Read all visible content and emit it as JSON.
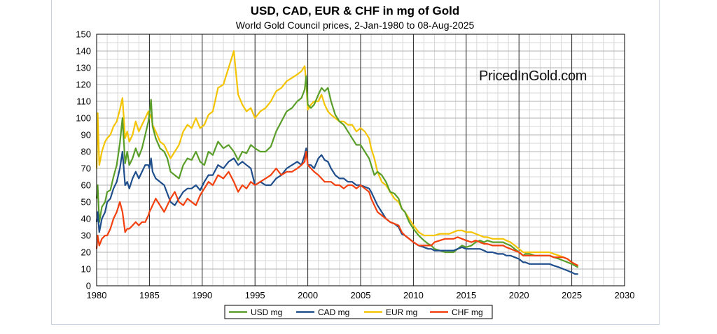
{
  "chart_data": {
    "type": "line",
    "title": "USD, CAD, EUR & CHF in mg of Gold",
    "subtitle": "World Gold Council prices, 2-Jan-1980 to 08-Aug-2025",
    "watermark": "PricedInGold.com",
    "xlabel": "",
    "ylabel": "",
    "xlim": [
      1980,
      2030
    ],
    "ylim": [
      0,
      150
    ],
    "x_ticks": [
      1980,
      1985,
      1990,
      1995,
      2000,
      2005,
      2010,
      2015,
      2020,
      2025,
      2030
    ],
    "y_ticks": [
      0,
      10,
      20,
      30,
      40,
      50,
      60,
      70,
      80,
      90,
      100,
      110,
      120,
      130,
      140,
      150
    ],
    "grid": true,
    "legend_position": "bottom",
    "series": [
      {
        "name": "USD mg",
        "color": "#5a9e2a",
        "x": [
          1980.0,
          1980.1,
          1980.25,
          1980.5,
          1980.8,
          1981.0,
          1981.3,
          1981.6,
          1981.9,
          1982.2,
          1982.45,
          1982.7,
          1982.9,
          1983.1,
          1983.4,
          1983.7,
          1984.0,
          1984.3,
          1984.6,
          1984.9,
          1985.0,
          1985.15,
          1985.3,
          1985.6,
          1986.0,
          1986.4,
          1986.7,
          1987.0,
          1987.4,
          1987.8,
          1988.2,
          1988.6,
          1989.0,
          1989.4,
          1989.8,
          1990.2,
          1990.6,
          1991.0,
          1991.5,
          1992.0,
          1992.5,
          1993.0,
          1993.4,
          1993.8,
          1994.2,
          1994.6,
          1995.0,
          1995.5,
          1996.0,
          1996.5,
          1997.0,
          1997.5,
          1998.0,
          1998.5,
          1999.0,
          1999.4,
          1999.7,
          1999.85,
          2000.0,
          2000.3,
          2000.6,
          2001.0,
          2001.3,
          2001.6,
          2001.9,
          2002.2,
          2002.6,
          2003.0,
          2003.4,
          2003.8,
          2004.2,
          2004.6,
          2005.0,
          2005.4,
          2005.8,
          2006.0,
          2006.3,
          2006.6,
          2007.0,
          2007.4,
          2007.8,
          2008.2,
          2008.6,
          2008.9,
          2009.2,
          2009.6,
          2010.0,
          2010.5,
          2011.0,
          2011.4,
          2011.7,
          2012.0,
          2012.5,
          2013.0,
          2013.4,
          2013.8,
          2014.2,
          2014.6,
          2015.0,
          2015.5,
          2015.9,
          2016.3,
          2016.7,
          2017.0,
          2017.5,
          2018.0,
          2018.5,
          2018.8,
          2019.2,
          2019.6,
          2020.0,
          2020.4,
          2020.6,
          2021.0,
          2021.5,
          2022.0,
          2022.5,
          2022.9,
          2023.3,
          2023.8,
          2024.2,
          2024.6,
          2025.0,
          2025.3,
          2025.6
        ],
        "values": [
          52,
          60,
          38,
          47,
          50,
          56,
          57,
          65,
          72,
          85,
          100,
          73,
          80,
          72,
          76,
          82,
          77,
          82,
          90,
          98,
          102,
          111,
          95,
          88,
          82,
          80,
          76,
          68,
          66,
          64,
          72,
          76,
          75,
          80,
          74,
          72,
          80,
          78,
          86,
          82,
          84,
          80,
          75,
          80,
          79,
          84,
          82,
          80,
          80,
          83,
          92,
          98,
          104,
          106,
          110,
          112,
          117,
          125,
          108,
          106,
          108,
          114,
          118,
          116,
          118,
          110,
          102,
          98,
          96,
          92,
          88,
          84,
          84,
          80,
          76,
          72,
          66,
          68,
          66,
          62,
          56,
          55,
          52,
          46,
          44,
          38,
          34,
          30,
          27,
          25,
          24,
          22,
          21,
          20,
          20,
          20,
          22,
          24,
          23,
          24,
          26,
          27,
          26,
          27,
          26,
          26,
          26,
          25,
          24,
          22,
          20,
          18,
          19,
          19,
          18,
          18,
          18,
          18,
          17,
          16,
          15,
          14,
          13,
          12,
          11
        ]
      },
      {
        "name": "CAD mg",
        "color": "#1f4e8c",
        "x": [
          1980.0,
          1980.1,
          1980.25,
          1980.5,
          1980.8,
          1981.0,
          1981.3,
          1981.6,
          1981.9,
          1982.2,
          1982.45,
          1982.7,
          1982.9,
          1983.1,
          1983.4,
          1983.7,
          1984.0,
          1984.3,
          1984.6,
          1984.9,
          1985.0,
          1985.15,
          1985.3,
          1985.6,
          1986.0,
          1986.4,
          1986.7,
          1987.0,
          1987.4,
          1987.8,
          1988.2,
          1988.6,
          1989.0,
          1989.4,
          1989.8,
          1990.2,
          1990.6,
          1991.0,
          1991.5,
          1992.0,
          1992.5,
          1993.0,
          1993.4,
          1993.8,
          1994.2,
          1994.6,
          1995.0,
          1995.5,
          1996.0,
          1996.5,
          1997.0,
          1997.5,
          1998.0,
          1998.5,
          1999.0,
          1999.4,
          1999.7,
          1999.85,
          2000.0,
          2000.3,
          2000.6,
          2001.0,
          2001.3,
          2001.6,
          2001.9,
          2002.2,
          2002.6,
          2003.0,
          2003.4,
          2003.8,
          2004.2,
          2004.6,
          2005.0,
          2005.4,
          2005.8,
          2006.0,
          2006.3,
          2006.6,
          2007.0,
          2007.4,
          2007.8,
          2008.2,
          2008.6,
          2008.9,
          2009.2,
          2009.6,
          2010.0,
          2010.5,
          2011.0,
          2011.4,
          2011.7,
          2012.0,
          2012.5,
          2013.0,
          2013.4,
          2013.8,
          2014.2,
          2014.6,
          2015.0,
          2015.5,
          2015.9,
          2016.3,
          2016.7,
          2017.0,
          2017.5,
          2018.0,
          2018.5,
          2018.8,
          2019.2,
          2019.6,
          2020.0,
          2020.4,
          2020.6,
          2021.0,
          2021.5,
          2022.0,
          2022.5,
          2022.9,
          2023.3,
          2023.8,
          2024.2,
          2024.6,
          2025.0,
          2025.3,
          2025.6
        ],
        "values": [
          38,
          44,
          32,
          40,
          44,
          50,
          52,
          58,
          62,
          70,
          80,
          60,
          62,
          58,
          64,
          68,
          64,
          68,
          72,
          72,
          70,
          76,
          68,
          64,
          62,
          60,
          55,
          50,
          48,
          52,
          56,
          58,
          58,
          60,
          57,
          62,
          66,
          66,
          72,
          70,
          74,
          76,
          72,
          74,
          72,
          70,
          60,
          62,
          60,
          60,
          64,
          66,
          70,
          72,
          74,
          72,
          78,
          82,
          72,
          72,
          70,
          76,
          78,
          75,
          74,
          70,
          66,
          64,
          64,
          62,
          62,
          60,
          60,
          59,
          58,
          56,
          52,
          48,
          44,
          40,
          38,
          37,
          35,
          31,
          30,
          28,
          26,
          24,
          23,
          22,
          22,
          21,
          21,
          21,
          21,
          21,
          22,
          23,
          22,
          22,
          22,
          22,
          21,
          20,
          20,
          19,
          19,
          18,
          18,
          17,
          16,
          14,
          14,
          13,
          13,
          13,
          13,
          13,
          12,
          11,
          10,
          9,
          8,
          7,
          7
        ]
      },
      {
        "name": "EUR mg",
        "color": "#f5c400",
        "x": [
          1980.0,
          1980.1,
          1980.25,
          1980.5,
          1980.8,
          1981.0,
          1981.3,
          1981.6,
          1981.9,
          1982.2,
          1982.45,
          1982.7,
          1982.9,
          1983.1,
          1983.4,
          1983.7,
          1984.0,
          1984.3,
          1984.6,
          1984.9,
          1985.0,
          1985.15,
          1985.3,
          1985.6,
          1986.0,
          1986.4,
          1986.7,
          1987.0,
          1987.4,
          1987.8,
          1988.2,
          1988.6,
          1989.0,
          1989.4,
          1989.8,
          1990.2,
          1990.6,
          1991.0,
          1991.5,
          1992.0,
          1992.5,
          1993.0,
          1993.4,
          1993.8,
          1994.2,
          1994.6,
          1995.0,
          1995.5,
          1996.0,
          1996.5,
          1997.0,
          1997.5,
          1998.0,
          1998.5,
          1999.0,
          1999.4,
          1999.7,
          1999.85,
          2000.0,
          2000.3,
          2000.6,
          2001.0,
          2001.3,
          2001.6,
          2001.9,
          2002.2,
          2002.6,
          2003.0,
          2003.4,
          2003.8,
          2004.2,
          2004.6,
          2005.0,
          2005.4,
          2005.8,
          2006.0,
          2006.3,
          2006.6,
          2007.0,
          2007.4,
          2007.8,
          2008.2,
          2008.6,
          2008.9,
          2009.2,
          2009.6,
          2010.0,
          2010.5,
          2011.0,
          2011.4,
          2011.7,
          2012.0,
          2012.5,
          2013.0,
          2013.4,
          2013.8,
          2014.2,
          2014.6,
          2015.0,
          2015.5,
          2015.9,
          2016.3,
          2016.7,
          2017.0,
          2017.5,
          2018.0,
          2018.5,
          2018.8,
          2019.2,
          2019.6,
          2020.0,
          2020.4,
          2020.6,
          2021.0,
          2021.5,
          2022.0,
          2022.5,
          2022.9,
          2023.3,
          2023.8,
          2024.2,
          2024.6,
          2025.0,
          2025.3,
          2025.6
        ],
        "values": [
          70,
          103,
          72,
          80,
          86,
          88,
          90,
          95,
          98,
          105,
          112,
          88,
          92,
          86,
          90,
          98,
          92,
          96,
          100,
          104,
          100,
          102,
          96,
          92,
          86,
          84,
          80,
          76,
          80,
          84,
          92,
          96,
          94,
          100,
          94,
          96,
          102,
          104,
          118,
          120,
          130,
          140,
          114,
          108,
          104,
          106,
          100,
          104,
          106,
          110,
          116,
          118,
          122,
          124,
          126,
          128,
          131,
          122,
          105,
          108,
          110,
          110,
          114,
          108,
          104,
          102,
          100,
          98,
          98,
          96,
          96,
          92,
          94,
          92,
          88,
          82,
          76,
          68,
          62,
          60,
          56,
          52,
          50,
          46,
          44,
          40,
          36,
          32,
          30,
          30,
          30,
          30,
          31,
          31,
          31,
          32,
          33,
          33,
          32,
          32,
          31,
          30,
          29,
          29,
          28,
          28,
          28,
          27,
          26,
          24,
          22,
          20,
          20,
          20,
          20,
          20,
          20,
          20,
          19,
          18,
          17,
          16,
          14,
          13,
          12
        ]
      },
      {
        "name": "CHF mg",
        "color": "#f2400f",
        "x": [
          1980.0,
          1980.1,
          1980.25,
          1980.5,
          1980.8,
          1981.0,
          1981.3,
          1981.6,
          1981.9,
          1982.2,
          1982.45,
          1982.7,
          1982.9,
          1983.1,
          1983.4,
          1983.7,
          1984.0,
          1984.3,
          1984.6,
          1984.9,
          1985.0,
          1985.15,
          1985.3,
          1985.6,
          1986.0,
          1986.4,
          1986.7,
          1987.0,
          1987.4,
          1987.8,
          1988.2,
          1988.6,
          1989.0,
          1989.4,
          1989.8,
          1990.2,
          1990.6,
          1991.0,
          1991.5,
          1992.0,
          1992.5,
          1993.0,
          1993.4,
          1993.8,
          1994.2,
          1994.6,
          1995.0,
          1995.5,
          1996.0,
          1996.5,
          1997.0,
          1997.5,
          1998.0,
          1998.5,
          1999.0,
          1999.4,
          1999.7,
          1999.85,
          2000.0,
          2000.3,
          2000.6,
          2001.0,
          2001.3,
          2001.6,
          2001.9,
          2002.2,
          2002.6,
          2003.0,
          2003.4,
          2003.8,
          2004.2,
          2004.6,
          2005.0,
          2005.4,
          2005.8,
          2006.0,
          2006.3,
          2006.6,
          2007.0,
          2007.4,
          2007.8,
          2008.2,
          2008.6,
          2008.9,
          2009.2,
          2009.6,
          2010.0,
          2010.5,
          2011.0,
          2011.4,
          2011.7,
          2012.0,
          2012.5,
          2013.0,
          2013.4,
          2013.8,
          2014.2,
          2014.6,
          2015.0,
          2015.5,
          2015.9,
          2016.3,
          2016.7,
          2017.0,
          2017.5,
          2018.0,
          2018.5,
          2018.8,
          2019.2,
          2019.6,
          2020.0,
          2020.4,
          2020.6,
          2021.0,
          2021.5,
          2022.0,
          2022.5,
          2022.9,
          2023.3,
          2023.8,
          2024.2,
          2024.6,
          2025.0,
          2025.3,
          2025.6
        ],
        "values": [
          22,
          30,
          24,
          28,
          30,
          30,
          34,
          40,
          44,
          50,
          44,
          32,
          34,
          34,
          36,
          38,
          36,
          38,
          38,
          42,
          44,
          46,
          48,
          52,
          48,
          44,
          48,
          52,
          56,
          50,
          48,
          52,
          50,
          48,
          54,
          58,
          62,
          60,
          66,
          64,
          68,
          62,
          56,
          60,
          58,
          62,
          60,
          62,
          64,
          66,
          70,
          66,
          68,
          68,
          70,
          72,
          74,
          80,
          72,
          70,
          68,
          66,
          64,
          62,
          62,
          62,
          60,
          60,
          58,
          60,
          60,
          58,
          60,
          58,
          56,
          52,
          48,
          44,
          42,
          40,
          38,
          37,
          36,
          32,
          30,
          28,
          26,
          24,
          24,
          24,
          24,
          26,
          27,
          28,
          28,
          28,
          29,
          28,
          27,
          26,
          27,
          26,
          25,
          25,
          24,
          24,
          24,
          23,
          22,
          21,
          20,
          18,
          18,
          18,
          18,
          18,
          18,
          18,
          17,
          17,
          17,
          16,
          14,
          13,
          12
        ]
      }
    ]
  }
}
